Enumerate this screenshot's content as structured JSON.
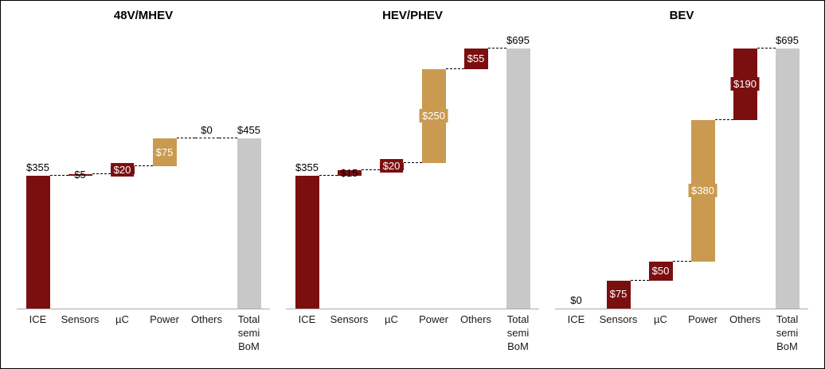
{
  "colors": {
    "maroon": "#7b0f10",
    "tan": "#c99a50",
    "gray_total": "#c8c8c8",
    "axis": "#ababab",
    "connector": "#000000",
    "label_dark": "#000000",
    "label_light": "#ffffff"
  },
  "chart_data": [
    {
      "type": "bar",
      "subtype": "waterfall",
      "title": "48V/MHEV",
      "categories": [
        "ICE",
        "Sensors",
        "µC",
        "Power",
        "Others",
        "Total\nsemi\nBoM"
      ],
      "values": [
        355,
        5,
        20,
        75,
        0,
        455
      ],
      "labels": [
        "$355",
        "$5",
        "$20",
        "$75",
        "$0",
        "$455"
      ],
      "is_total": [
        false,
        false,
        false,
        false,
        false,
        true
      ],
      "bar_colors": [
        "maroon",
        "maroon",
        "maroon",
        "tan",
        null,
        "gray_total"
      ],
      "label_styles": [
        "above",
        "on",
        "inside",
        "inside",
        "above",
        "above"
      ],
      "xlabel": "",
      "ylabel": "",
      "ylim": [
        0,
        700
      ],
      "grid": false,
      "legend": false
    },
    {
      "type": "bar",
      "subtype": "waterfall",
      "title": "HEV/PHEV",
      "categories": [
        "ICE",
        "Sensors",
        "µC",
        "Power",
        "Others",
        "Total\nsemi\nBoM"
      ],
      "values": [
        355,
        15,
        20,
        250,
        55,
        695
      ],
      "labels": [
        "$355",
        "$15",
        "$20",
        "$250",
        "$55",
        "$695"
      ],
      "is_total": [
        false,
        false,
        false,
        false,
        false,
        true
      ],
      "bar_colors": [
        "maroon",
        "maroon",
        "maroon",
        "tan",
        "maroon",
        "gray_total"
      ],
      "label_styles": [
        "above",
        "on",
        "inside",
        "inside",
        "inside",
        "above"
      ],
      "xlabel": "",
      "ylabel": "",
      "ylim": [
        0,
        700
      ],
      "grid": false,
      "legend": false
    },
    {
      "type": "bar",
      "subtype": "waterfall",
      "title": "BEV",
      "categories": [
        "ICE",
        "Sensors",
        "µC",
        "Power",
        "Others",
        "Total\nsemi\nBoM"
      ],
      "values": [
        0,
        75,
        50,
        380,
        190,
        695
      ],
      "labels": [
        "$0",
        "$75",
        "$50",
        "$380",
        "$190",
        "$695"
      ],
      "is_total": [
        false,
        false,
        false,
        false,
        false,
        true
      ],
      "bar_colors": [
        null,
        "maroon",
        "maroon",
        "tan",
        "maroon",
        "gray_total"
      ],
      "label_styles": [
        "above",
        "inside",
        "inside",
        "inside",
        "inside",
        "above"
      ],
      "xlabel": "",
      "ylabel": "",
      "ylim": [
        0,
        700
      ],
      "grid": false,
      "legend": false
    }
  ]
}
